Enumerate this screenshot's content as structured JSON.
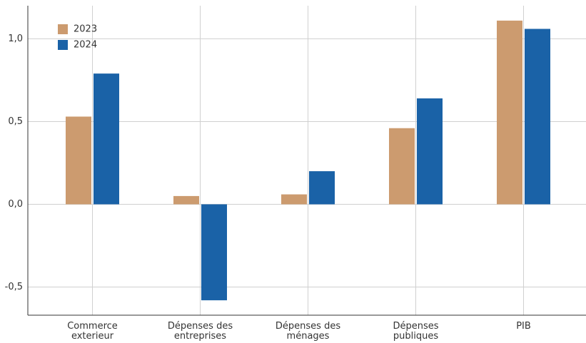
{
  "chart_data": {
    "type": "bar",
    "categories": [
      "Commerce\nexterieur",
      "Dépenses des\nentreprises",
      "Dépenses des\nménages",
      "Dépenses\npubliques",
      "PIB"
    ],
    "series": [
      {
        "name": "2023",
        "color": "#cc9b6f",
        "values": [
          0.53,
          0.05,
          0.06,
          0.46,
          1.11
        ]
      },
      {
        "name": "2024",
        "color": "#1a62a7",
        "values": [
          0.79,
          -0.58,
          0.2,
          0.64,
          1.06
        ]
      }
    ],
    "ylim": [
      -0.67,
      1.2
    ],
    "yticks": [
      {
        "value": -0.5,
        "label": "-0,5"
      },
      {
        "value": 0,
        "label": "0,0"
      },
      {
        "value": 0.5,
        "label": "0,5"
      },
      {
        "value": 1,
        "label": "1,0"
      }
    ],
    "grid": true,
    "legend": "top-left"
  }
}
